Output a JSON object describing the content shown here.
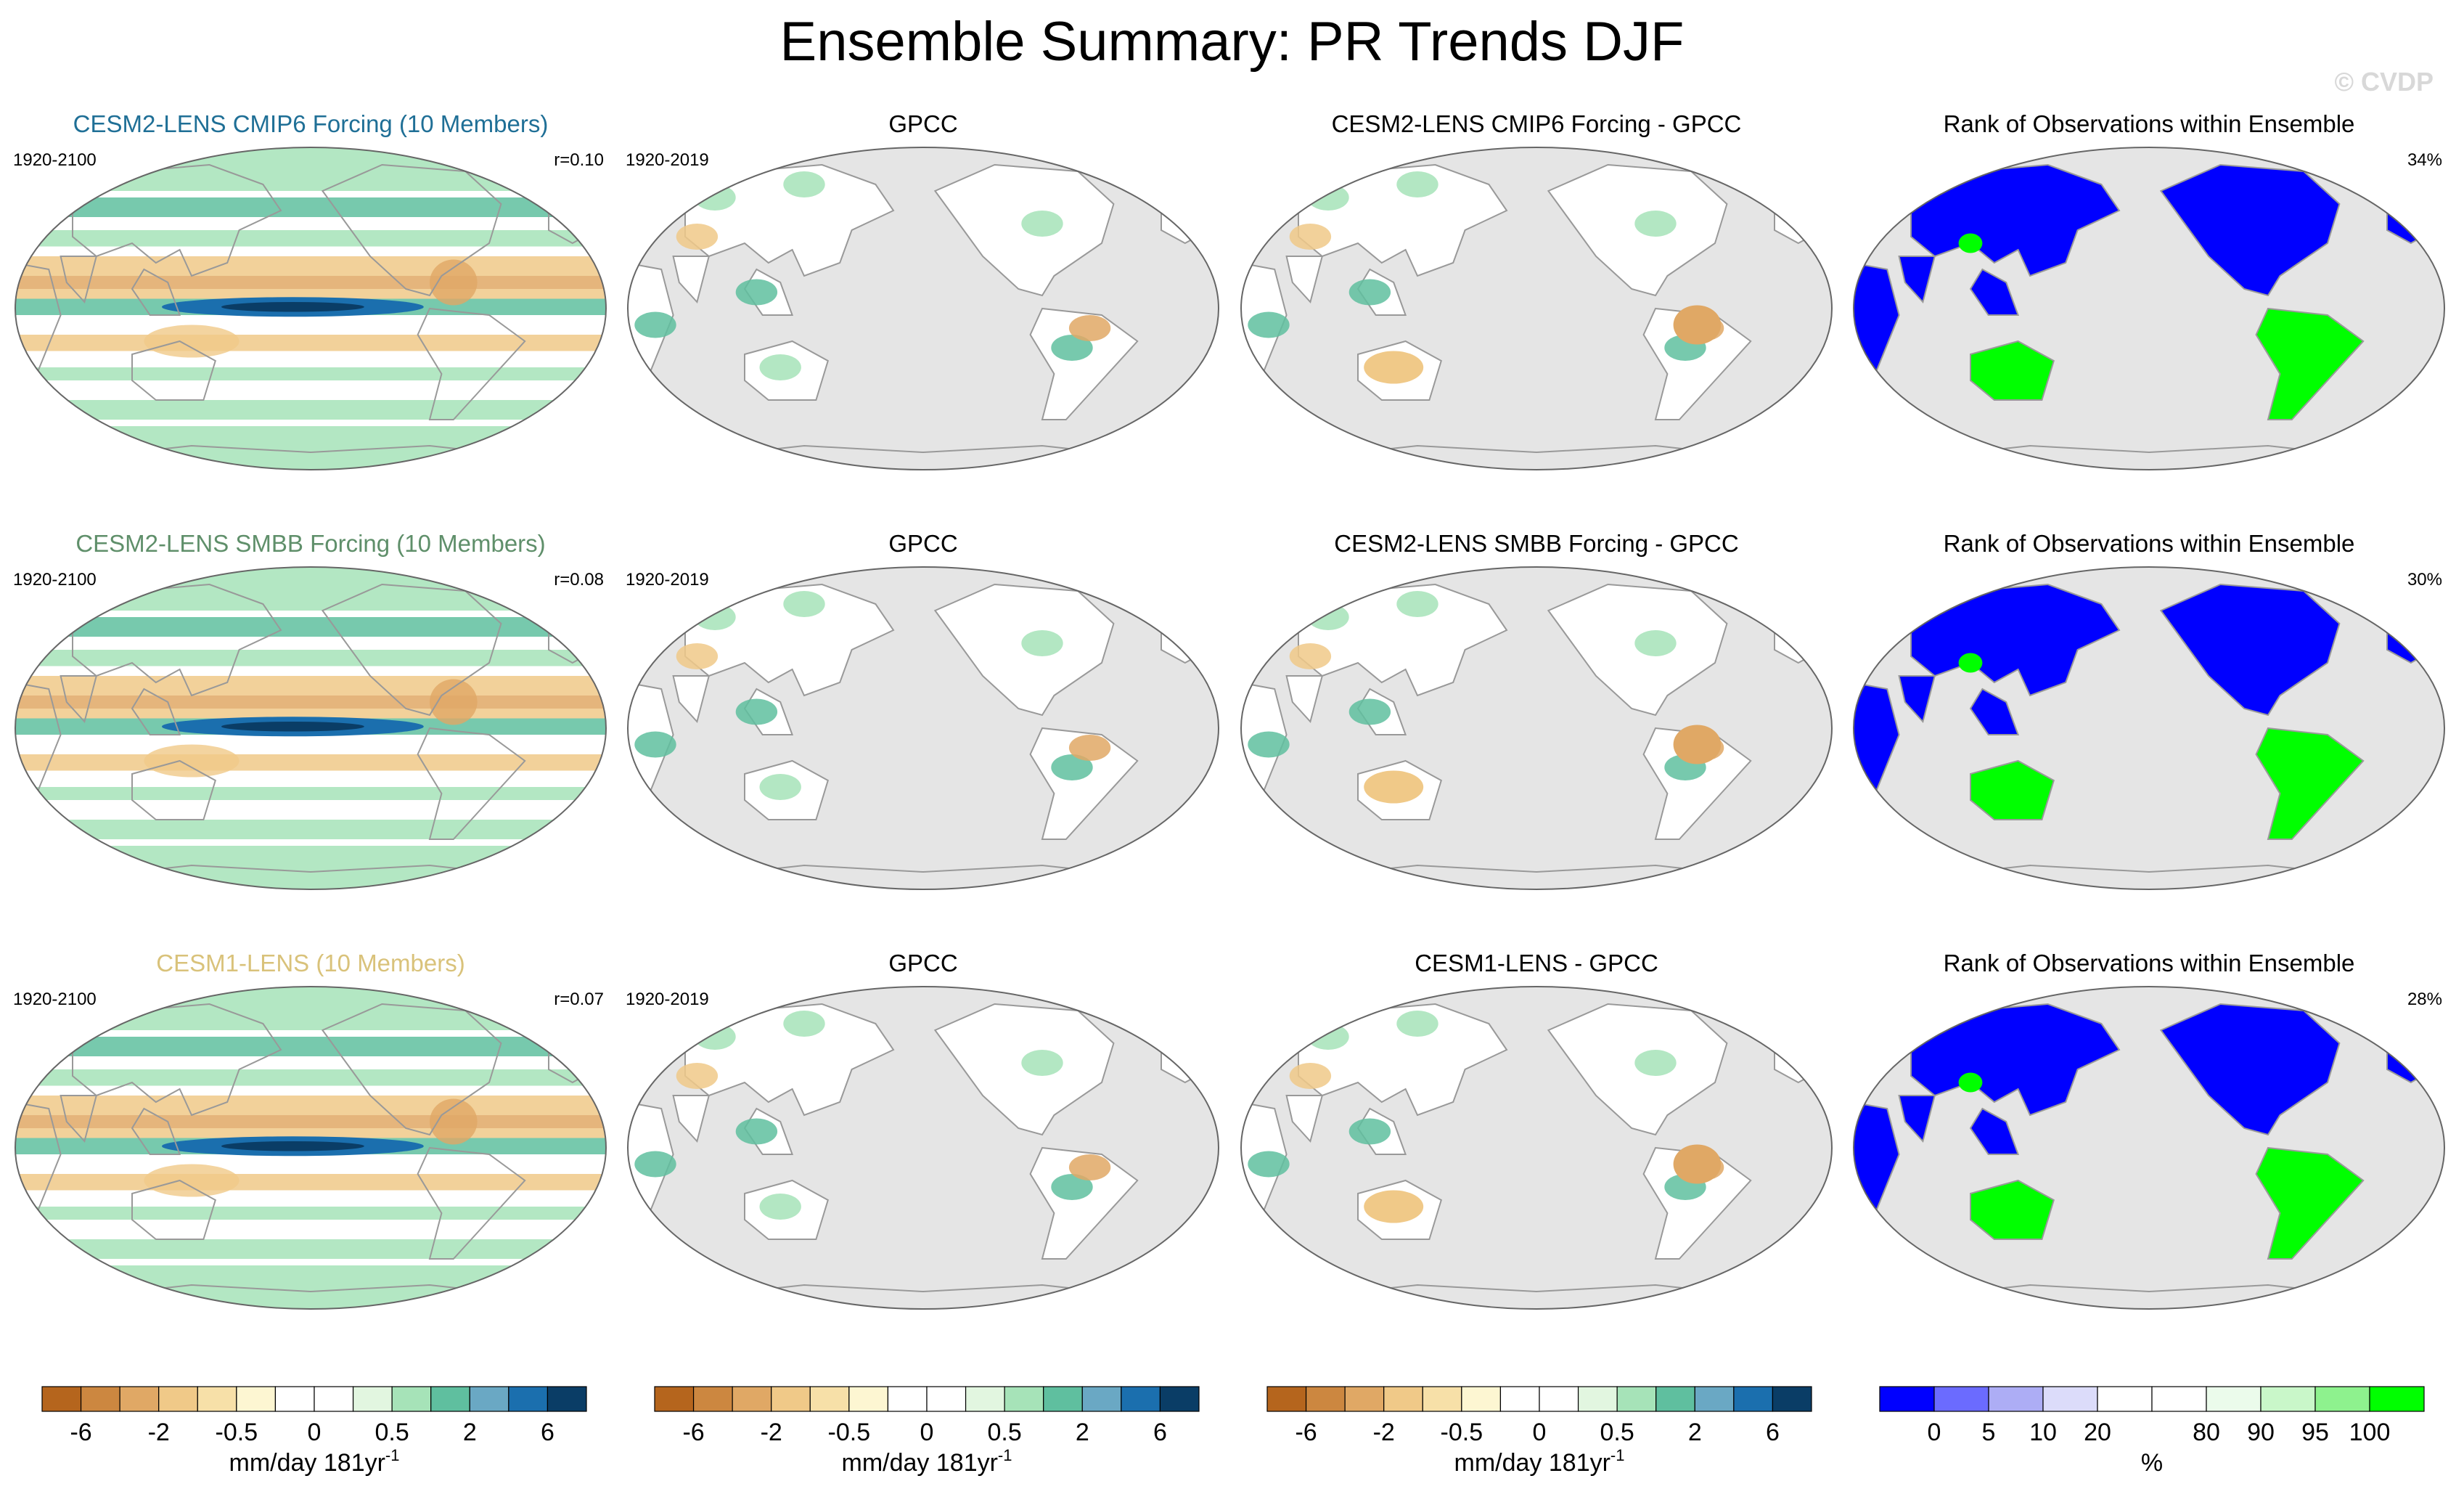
{
  "title": "Ensemble Summary: PR Trends DJF",
  "watermark": "© CVDP",
  "rows": [
    {
      "ensemble_title": "CESM2-LENS CMIP6 Forcing (10 Members)",
      "ensemble_color": "#1f6f96",
      "ensemble_period": "1920-2100",
      "ensemble_r": "r=0.10",
      "obs_title": "GPCC",
      "obs_period": "1920-2019",
      "diff_title": "CESM2-LENS CMIP6 Forcing - GPCC",
      "rank_title": "Rank of Observations within Ensemble",
      "rank_percent": "34%"
    },
    {
      "ensemble_title": "CESM2-LENS SMBB Forcing (10 Members)",
      "ensemble_color": "#5f8f6a",
      "ensemble_period": "1920-2100",
      "ensemble_r": "r=0.08",
      "obs_title": "GPCC",
      "obs_period": "1920-2019",
      "diff_title": "CESM2-LENS SMBB Forcing - GPCC",
      "rank_title": "Rank of Observations within Ensemble",
      "rank_percent": "30%"
    },
    {
      "ensemble_title": "CESM1-LENS (10 Members)",
      "ensemble_color": "#d9c27a",
      "ensemble_period": "1920-2100",
      "ensemble_r": "r=0.07",
      "obs_title": "GPCC",
      "obs_period": "1920-2019",
      "diff_title": "CESM1-LENS - GPCC",
      "rank_title": "Rank of Observations within Ensemble",
      "rank_percent": "28%"
    }
  ],
  "colorbar_trend": {
    "colors": [
      "#b5651d",
      "#cc8740",
      "#e0a865",
      "#f0c988",
      "#f7e0a8",
      "#fdf6d2",
      "#ffffff",
      "#ffffff",
      "#e2f6e0",
      "#a6e3b8",
      "#5fbf9f",
      "#6aa8c4",
      "#1b6fae",
      "#0a3d66"
    ],
    "labels": [
      "-6",
      "-2",
      "-0.5",
      "0",
      "0.5",
      "2",
      "6"
    ],
    "units": "mm/day 181yr",
    "units_sup": "-1"
  },
  "colorbar_rank": {
    "colors": [
      "#0000ff",
      "#6b6bff",
      "#adadf5",
      "#dcdcfa",
      "#ffffff",
      "#ffffff",
      "#ebfbeb",
      "#c9f7c9",
      "#8ef28e",
      "#00ff00"
    ],
    "labels": [
      "0",
      "5",
      "10",
      "20",
      "80",
      "90",
      "95",
      "100"
    ],
    "units": "%"
  },
  "map_colors": {
    "ocean_gray": "#e5e5e5",
    "coast": "#999999",
    "rank_blue": "#0000ff",
    "rank_green": "#00ff00",
    "band_blue": "#1b6fae",
    "band_dark": "#0a3d66",
    "band_teal": "#5fbf9f",
    "band_green": "#a6e3b8",
    "band_tan": "#f0c988",
    "band_brown": "#e0a865"
  }
}
